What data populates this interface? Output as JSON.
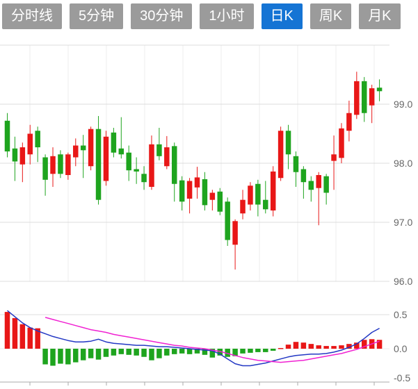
{
  "tabbar": {
    "items": [
      {
        "id": "timeline",
        "label": "分时线",
        "active": false
      },
      {
        "id": "5min",
        "label": "5分钟",
        "active": false
      },
      {
        "id": "30min",
        "label": "30分钟",
        "active": false
      },
      {
        "id": "1hour",
        "label": "1小时",
        "active": false
      },
      {
        "id": "day-k",
        "label": "日K",
        "active": true
      },
      {
        "id": "week-k",
        "label": "周K",
        "active": false
      },
      {
        "id": "month-k",
        "label": "月K",
        "active": false
      }
    ]
  },
  "colors": {
    "tab_active_bg": "#1574d4",
    "tab_inactive_bg": "#9b9b9b",
    "tab_text": "#ffffff",
    "candle_up": "#e81717",
    "candle_down": "#1ea41e",
    "dif_line": "#2237c4",
    "dea_line": "#f021d2",
    "axis_text": "#666666",
    "grid_line": "#dcdcdc",
    "grid_line_faint": "#ececec",
    "axis_line": "#aaaaaa"
  },
  "chart_data": {
    "type": "candlestick_with_macd",
    "title": "",
    "legend": [],
    "grid": true,
    "price_axis": {
      "side": "right",
      "tick_labels": [
        "99.0",
        "98.0",
        "97.0",
        "96.0"
      ],
      "tick_values": [
        99.0,
        98.0,
        97.0,
        96.0
      ],
      "range": [
        95.9,
        100.0
      ]
    },
    "macd_axis": {
      "side": "right",
      "tick_labels": [
        "0.5",
        "0.0",
        "-0.5"
      ],
      "tick_values": [
        0.5,
        0.0,
        -0.5
      ],
      "range": [
        -0.5,
        0.55
      ]
    },
    "candles_ohlc": [
      [
        98.72,
        98.85,
        98.1,
        98.2
      ],
      [
        98.25,
        98.45,
        97.7,
        98.03
      ],
      [
        97.98,
        98.35,
        97.68,
        98.27
      ],
      [
        98.15,
        98.65,
        97.98,
        98.5
      ],
      [
        98.55,
        98.62,
        98.02,
        98.27
      ],
      [
        98.1,
        98.15,
        97.45,
        97.72
      ],
      [
        97.82,
        98.27,
        97.6,
        98.12
      ],
      [
        98.15,
        98.22,
        97.75,
        97.82
      ],
      [
        97.8,
        98.18,
        97.72,
        98.15
      ],
      [
        98.1,
        98.42,
        97.95,
        98.3
      ],
      [
        98.3,
        98.48,
        97.75,
        98.22
      ],
      [
        97.95,
        98.62,
        97.88,
        98.58
      ],
      [
        98.58,
        98.8,
        97.3,
        97.38
      ],
      [
        97.7,
        98.55,
        97.62,
        98.45
      ],
      [
        98.52,
        98.6,
        98.1,
        98.18
      ],
      [
        98.25,
        98.78,
        98.08,
        98.15
      ],
      [
        98.18,
        98.3,
        97.7,
        97.88
      ],
      [
        97.9,
        98.1,
        97.65,
        97.86
      ],
      [
        97.82,
        97.95,
        97.55,
        97.68
      ],
      [
        97.6,
        98.47,
        97.55,
        98.32
      ],
      [
        98.32,
        98.6,
        98.05,
        98.12
      ],
      [
        97.95,
        98.46,
        97.9,
        98.27
      ],
      [
        98.29,
        98.35,
        97.35,
        97.65
      ],
      [
        97.71,
        97.78,
        97.2,
        97.35
      ],
      [
        97.4,
        97.75,
        97.15,
        97.7
      ],
      [
        97.59,
        97.94,
        97.4,
        97.76
      ],
      [
        97.73,
        97.85,
        97.2,
        97.29
      ],
      [
        97.38,
        97.55,
        97.2,
        97.5
      ],
      [
        97.52,
        97.58,
        97.12,
        97.18
      ],
      [
        97.35,
        97.42,
        96.6,
        96.7
      ],
      [
        96.62,
        97.05,
        96.2,
        97.02
      ],
      [
        97.15,
        97.55,
        97.05,
        97.38
      ],
      [
        97.3,
        97.68,
        97.2,
        97.62
      ],
      [
        97.65,
        97.72,
        97.1,
        97.3
      ],
      [
        97.38,
        97.7,
        97.15,
        97.22
      ],
      [
        97.2,
        97.95,
        97.1,
        97.86
      ],
      [
        97.75,
        98.62,
        97.7,
        98.55
      ],
      [
        98.55,
        98.65,
        97.9,
        98.15
      ],
      [
        98.12,
        98.2,
        97.6,
        97.85
      ],
      [
        97.9,
        97.95,
        97.4,
        97.68
      ],
      [
        97.7,
        97.78,
        97.35,
        97.55
      ],
      [
        97.58,
        97.85,
        96.95,
        97.8
      ],
      [
        97.78,
        97.82,
        97.3,
        97.5
      ],
      [
        98.04,
        98.47,
        97.55,
        98.15
      ],
      [
        98.09,
        98.68,
        98.0,
        98.59
      ],
      [
        98.55,
        99.06,
        98.37,
        98.85
      ],
      [
        98.82,
        99.55,
        98.75,
        99.39
      ],
      [
        99.39,
        99.46,
        98.7,
        98.85
      ],
      [
        98.98,
        99.33,
        98.68,
        99.27
      ],
      [
        99.28,
        99.42,
        99.05,
        99.22
      ]
    ],
    "macd": {
      "histogram": [
        0.54,
        0.45,
        0.36,
        0.31,
        0.3,
        -0.23,
        -0.25,
        -0.22,
        -0.23,
        -0.2,
        -0.17,
        -0.14,
        -0.16,
        -0.12,
        -0.1,
        -0.08,
        -0.09,
        -0.1,
        -0.12,
        -0.17,
        -0.14,
        -0.1,
        -0.08,
        -0.07,
        -0.08,
        -0.07,
        -0.09,
        -0.13,
        -0.1,
        -0.12,
        -0.11,
        -0.07,
        -0.06,
        -0.05,
        -0.05,
        -0.03,
        0.01,
        0.06,
        0.1,
        0.09,
        0.07,
        0.05,
        0.04,
        0.04,
        0.05,
        0.07,
        0.09,
        0.13,
        0.14,
        0.13
      ],
      "dif": [
        0.56,
        0.47,
        0.38,
        0.31,
        0.26,
        0.22,
        0.18,
        0.15,
        0.12,
        0.1,
        0.1,
        0.11,
        0.14,
        0.1,
        0.08,
        0.07,
        0.06,
        0.05,
        0.05,
        0.04,
        0.03,
        0.03,
        0.02,
        0.01,
        0.0,
        -0.01,
        -0.02,
        -0.03,
        -0.08,
        -0.15,
        -0.22,
        -0.25,
        -0.25,
        -0.23,
        -0.21,
        -0.18,
        -0.15,
        -0.12,
        -0.1,
        -0.09,
        -0.08,
        -0.08,
        -0.07,
        -0.05,
        -0.02,
        0.02,
        0.07,
        0.15,
        0.24,
        0.3
      ],
      "dea": [
        null,
        null,
        null,
        null,
        null,
        0.46,
        0.43,
        0.4,
        0.37,
        0.34,
        0.31,
        0.28,
        0.26,
        0.24,
        0.21,
        0.19,
        0.17,
        0.15,
        0.13,
        0.11,
        0.09,
        0.07,
        0.05,
        0.04,
        0.02,
        0.01,
        0.0,
        -0.02,
        -0.04,
        -0.07,
        -0.1,
        -0.13,
        -0.15,
        -0.17,
        -0.18,
        -0.19,
        -0.2,
        -0.19,
        -0.18,
        -0.17,
        -0.15,
        -0.13,
        -0.11,
        -0.09,
        -0.07,
        -0.04,
        -0.01,
        0.03,
        0.07,
        0.11
      ]
    }
  }
}
